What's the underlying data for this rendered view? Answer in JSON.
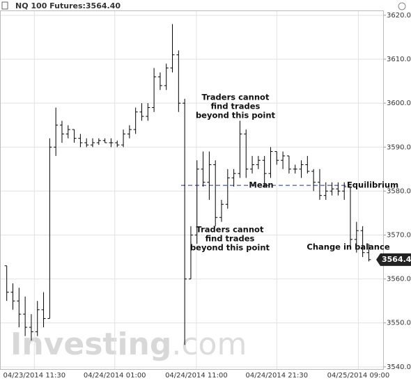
{
  "chart_data": {
    "type": "ohlc",
    "title": "NQ 100 Futures:3564.40",
    "watermark": [
      "Investing",
      ".com"
    ],
    "color": "#000000",
    "grid": true,
    "ylim": [
      3539.5,
      3621.1
    ],
    "yticks": [
      {
        "value": 3540,
        "label": "3540.00"
      },
      {
        "value": 3550,
        "label": "3550.00"
      },
      {
        "value": 3560,
        "label": "3560.00"
      },
      {
        "value": 3570,
        "label": "3570.00"
      },
      {
        "value": 3580,
        "label": "3580.00"
      },
      {
        "value": 3590,
        "label": "3590.00"
      },
      {
        "value": 3600,
        "label": "3600.00"
      },
      {
        "value": 3610,
        "label": "3610.00"
      },
      {
        "value": 3620,
        "label": "3620.00"
      }
    ],
    "xlim": [
      -1.1,
      60.2
    ],
    "xticks": [
      {
        "value": 4.5,
        "label": "04/23/2014 11:30"
      },
      {
        "value": 17.6,
        "label": "04/24/2014 01:00"
      },
      {
        "value": 30.9,
        "label": "04/24/2014 11:00"
      },
      {
        "value": 44,
        "label": "04/24/2014 21:30"
      },
      {
        "value": 57.3,
        "label": "04/25/2014 09:00"
      }
    ],
    "open": [
      3563,
      3557,
      3555,
      3552,
      3549,
      3548,
      3553,
      3551,
      3590,
      3595,
      3593,
      3594,
      3592,
      3591,
      3590.5,
      3591,
      3591.5,
      3591,
      3591,
      3590.5,
      3593,
      3594,
      3598,
      3597,
      3599,
      3606,
      3604,
      3608,
      3611,
      3600,
      3560,
      3570,
      3585,
      3582,
      3586,
      3574,
      3577,
      3583,
      3584,
      3593,
      3585,
      3586,
      3587,
      3584,
      3589,
      3587,
      3588,
      3585,
      3585,
      3586,
      3584.5,
      3582,
      3579,
      3580,
      3580.5,
      3580,
      3581,
      3569,
      3571,
      3566
    ],
    "high": [
      3563,
      3559,
      3558,
      3556,
      3552,
      3555,
      3557,
      3592,
      3599,
      3596,
      3595,
      3594,
      3593,
      3592,
      3592,
      3592,
      3592,
      3592,
      3591.5,
      3594,
      3595,
      3599,
      3600,
      3600,
      3608,
      3607,
      3609,
      3618,
      3612,
      3601,
      3572,
      3587,
      3589,
      3589,
      3587,
      3578,
      3585,
      3585,
      3596,
      3594,
      3588,
      3588,
      3588,
      3590,
      3589,
      3589,
      3588,
      3586,
      3587,
      3588,
      3585,
      3585,
      3582,
      3582,
      3582,
      3582,
      3581,
      3573,
      3572,
      3568
    ],
    "low": [
      3555,
      3553,
      3549,
      3547,
      3546,
      3547,
      3549,
      3551,
      3588,
      3591,
      3592,
      3591,
      3590,
      3590,
      3590,
      3590.5,
      3591,
      3590,
      3590,
      3590,
      3592,
      3593,
      3596,
      3596,
      3598,
      3603,
      3603,
      3607,
      3598,
      3545,
      3560,
      3568,
      3581,
      3578,
      3572,
      3573,
      3576,
      3581,
      3583,
      3583,
      3584,
      3585,
      3581,
      3583,
      3586,
      3585,
      3584,
      3584,
      3583,
      3584,
      3580,
      3578,
      3578,
      3579,
      3579,
      3578,
      3567,
      3566,
      3565,
      3564
    ],
    "close": [
      3557,
      3555,
      3552,
      3549,
      3548,
      3553,
      3551,
      3590,
      3595,
      3593,
      3594,
      3592,
      3591,
      3590.5,
      3591,
      3591.5,
      3591,
      3591,
      3590.5,
      3593,
      3594,
      3598,
      3597,
      3599,
      3606,
      3604,
      3608,
      3611,
      3600,
      3560,
      3570,
      3585,
      3582,
      3586,
      3574,
      3577,
      3583,
      3584,
      3593,
      3585,
      3586,
      3587,
      3584,
      3589,
      3587,
      3588,
      3585,
      3585,
      3586,
      3584.5,
      3582,
      3579,
      3580,
      3580.5,
      3580,
      3581,
      3569,
      3571,
      3566,
      3564.4
    ],
    "last_price": {
      "value": 3564.4,
      "label": "3564.4"
    },
    "mean_line": {
      "value": 3581.3,
      "label": "Mean",
      "color": "#3344cc"
    },
    "annotations": [
      {
        "text": [
          "Traders cannot",
          "find trades",
          "beyond this point"
        ]
      },
      {
        "text": [
          "Traders cannot",
          "find trades",
          "beyond this point"
        ]
      },
      {
        "text": [
          "Equilibrium"
        ]
      },
      {
        "text": [
          "Change in balance"
        ]
      }
    ]
  }
}
